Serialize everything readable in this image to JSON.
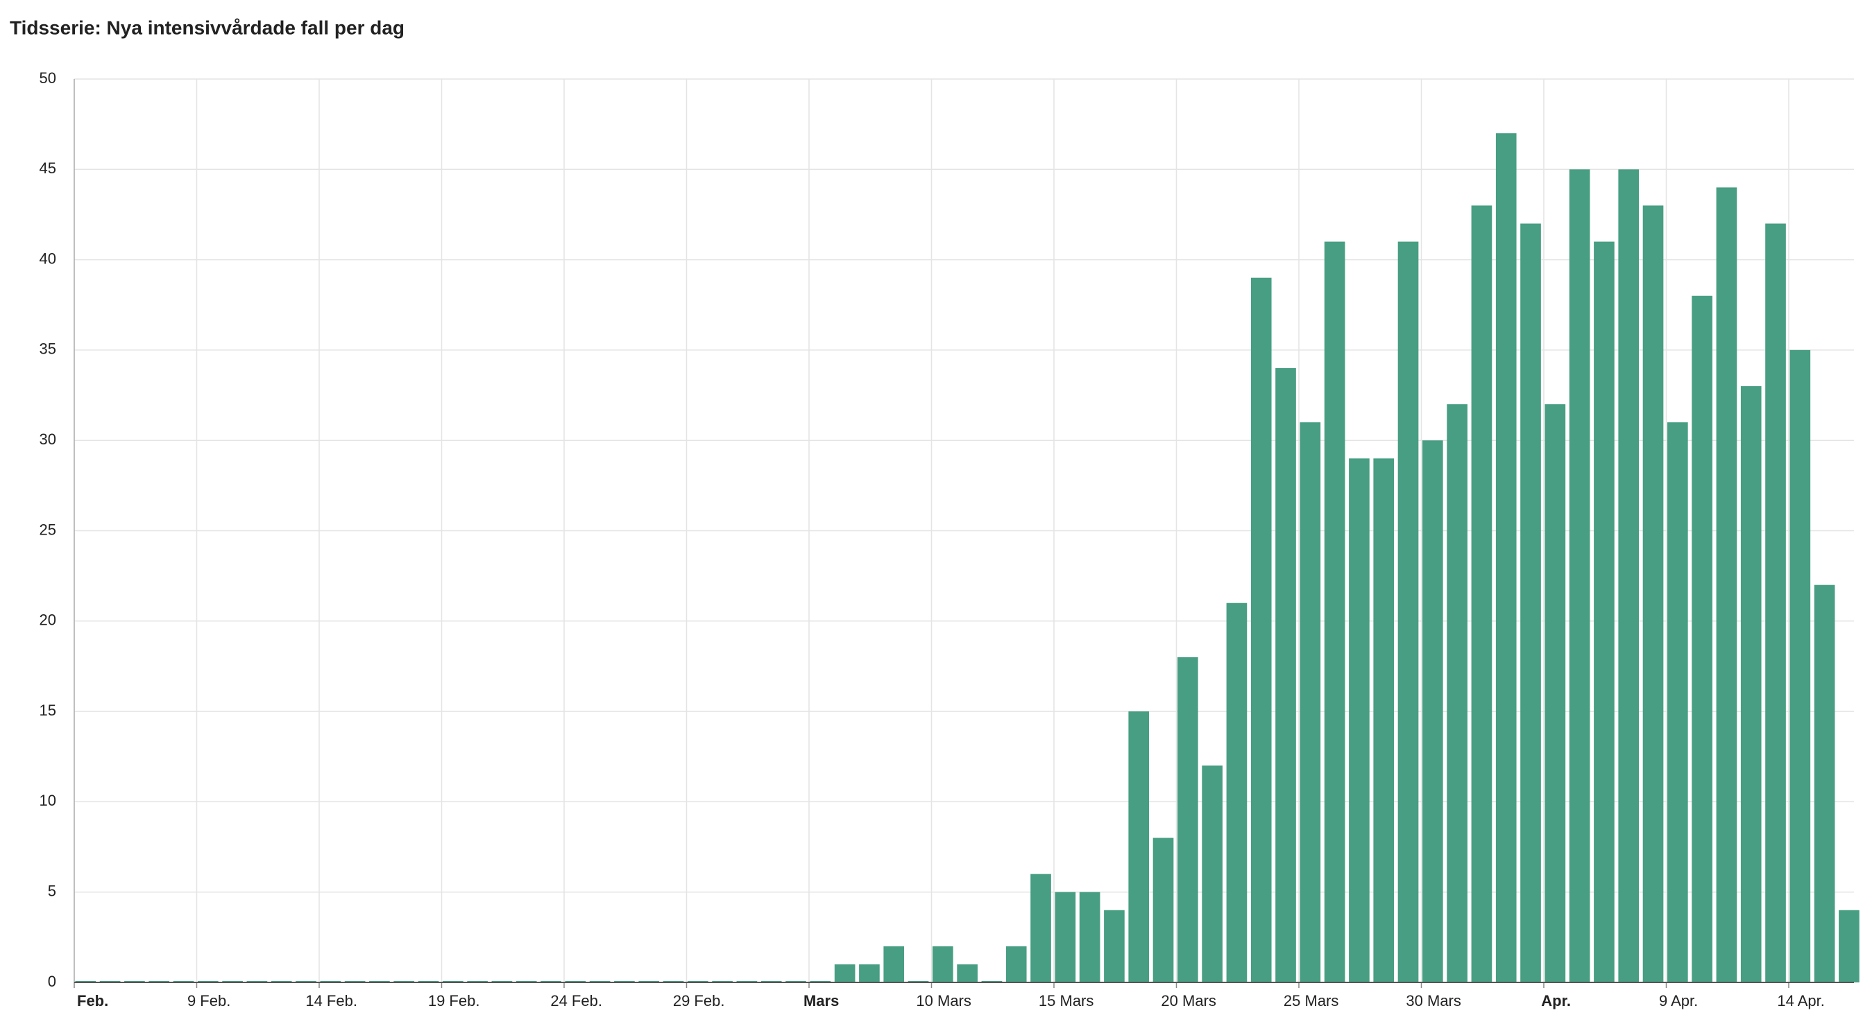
{
  "chart_data": {
    "type": "bar",
    "title": "Tidsserie: Nya intensivvårdade fall per dag",
    "categories": [
      "Feb.",
      null,
      null,
      null,
      null,
      "9 Feb.",
      null,
      null,
      null,
      null,
      "14 Feb.",
      null,
      null,
      null,
      null,
      "19 Feb.",
      null,
      null,
      null,
      null,
      "24 Feb.",
      null,
      null,
      null,
      null,
      "29 Feb.",
      null,
      null,
      null,
      null,
      "Mars",
      null,
      null,
      null,
      null,
      "10 Mars",
      null,
      null,
      null,
      null,
      "15 Mars",
      null,
      null,
      null,
      null,
      "20 Mars",
      null,
      null,
      null,
      null,
      "25 Mars",
      null,
      null,
      null,
      null,
      "30 Mars",
      null,
      null,
      null,
      null,
      "Apr.",
      null,
      null,
      null,
      null,
      "9 Apr.",
      null,
      null,
      null,
      null,
      "14 Apr.",
      null,
      null
    ],
    "values": [
      0,
      0,
      0,
      0,
      0,
      0,
      0,
      0,
      0,
      0,
      0,
      0,
      0,
      0,
      0,
      0,
      0,
      0,
      0,
      0,
      0,
      0,
      0,
      0,
      0,
      0,
      0,
      0,
      0,
      0,
      0,
      1,
      1,
      2,
      0,
      2,
      1,
      0,
      2,
      6,
      5,
      5,
      4,
      15,
      8,
      18,
      12,
      21,
      39,
      34,
      31,
      41,
      29,
      29,
      41,
      30,
      32,
      43,
      47,
      42,
      32,
      45,
      41,
      45,
      43,
      31,
      38,
      44,
      33,
      42,
      35,
      22,
      4
    ],
    "color": "#479e82",
    "ylim": [
      0,
      50
    ],
    "yticks": [
      0,
      5,
      10,
      15,
      20,
      25,
      30,
      35,
      40,
      45,
      50
    ],
    "grid": true
  }
}
